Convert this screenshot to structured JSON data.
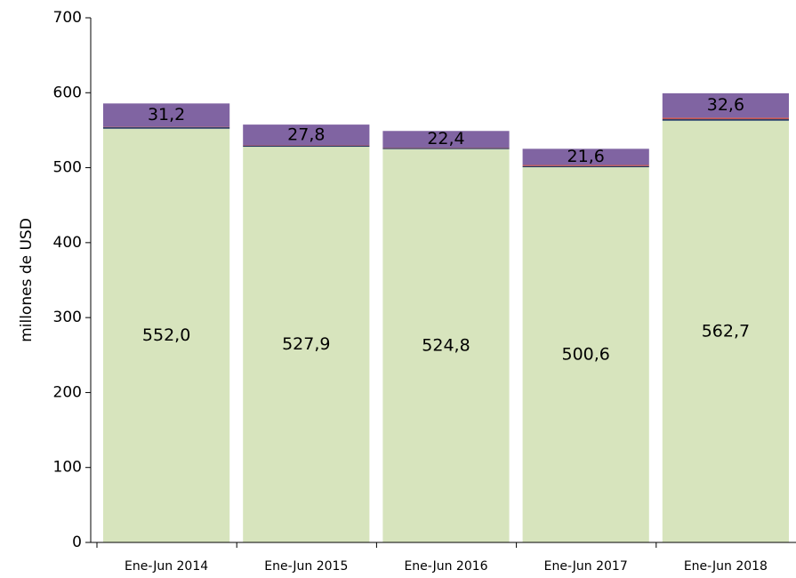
{
  "chart_data": {
    "type": "stacked_bar",
    "y_label": "millones de  USD",
    "categories": [
      "Ene-Jun 2014",
      "Ene-Jun 2015",
      "Ene-Jun 2016",
      "Ene-Jun 2017",
      "Ene-Jun 2018"
    ],
    "series": [
      {
        "color": "#d7e4bd",
        "values": [
          552.0,
          527.9,
          524.8,
          500.6,
          562.7
        ],
        "value_labels": [
          "552,0",
          "527,9",
          "524,8",
          "500,6",
          "562,7"
        ]
      },
      {
        "color": "#1f3864",
        "values": [
          2.0,
          1.5,
          1.5,
          1.5,
          2.0
        ]
      },
      {
        "color": "#c0504d",
        "values": [
          0.5,
          0.3,
          0.3,
          1.5,
          2.0
        ]
      },
      {
        "color": "#8064a2",
        "values": [
          31.2,
          27.8,
          22.4,
          21.6,
          32.6
        ],
        "value_labels": [
          "31,2",
          "27,8",
          "22,4",
          "21,6",
          "32,6"
        ]
      }
    ],
    "ylim": [
      0,
      700
    ],
    "yticks": [
      0,
      100,
      200,
      300,
      400,
      500,
      600,
      700
    ]
  }
}
